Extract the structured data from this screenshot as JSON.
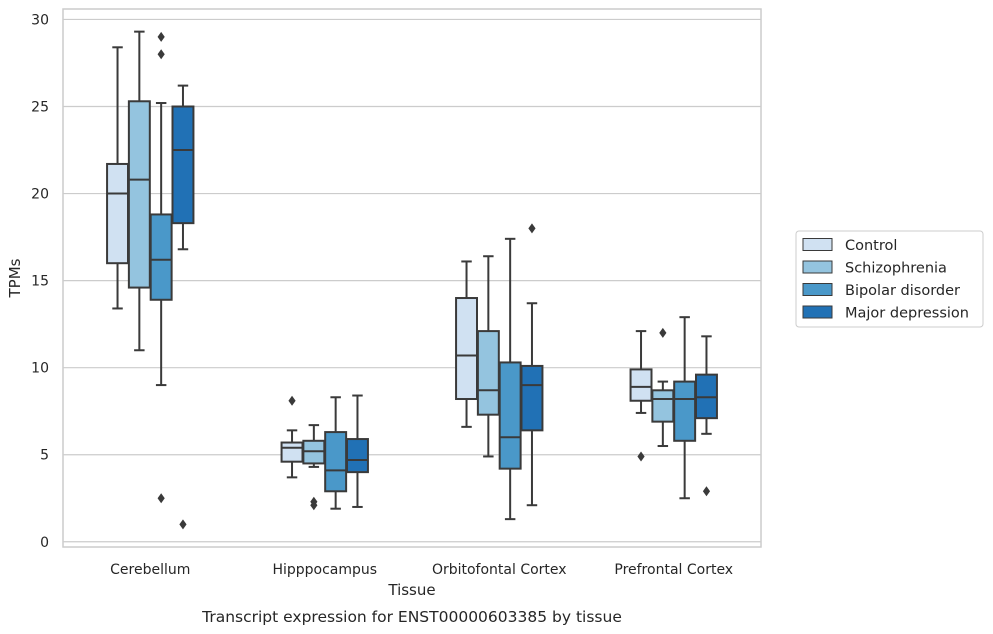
{
  "chart_data": {
    "type": "box",
    "caption": "Transcript expression for ENST00000603385 by tissue",
    "xlabel": "Tissue",
    "ylabel": "TPMs",
    "ylim": [
      -0.3,
      30.6
    ],
    "yticks": [
      0,
      5,
      10,
      15,
      20,
      25,
      30
    ],
    "grid": true,
    "legend_position": "right",
    "categories": [
      "Cerebellum",
      "Hipppocampus",
      "Orbitofontal Cortex",
      "Prefrontal Cortex"
    ],
    "series": [
      {
        "name": "Control",
        "color": "#d0e1f2",
        "boxes": [
          {
            "whislo": 13.4,
            "q1": 16.0,
            "med": 20.0,
            "q3": 21.7,
            "whishi": 28.4,
            "fliers": []
          },
          {
            "whislo": 3.7,
            "q1": 4.6,
            "med": 5.4,
            "q3": 5.7,
            "whishi": 6.4,
            "fliers": [
              8.1
            ]
          },
          {
            "whislo": 6.6,
            "q1": 8.2,
            "med": 10.7,
            "q3": 14.0,
            "whishi": 16.1,
            "fliers": []
          },
          {
            "whislo": 7.4,
            "q1": 8.1,
            "med": 8.9,
            "q3": 9.9,
            "whishi": 12.1,
            "fliers": [
              4.9
            ]
          }
        ]
      },
      {
        "name": "Schizophrenia",
        "color": "#94c4df",
        "boxes": [
          {
            "whislo": 11.0,
            "q1": 14.6,
            "med": 20.8,
            "q3": 25.3,
            "whishi": 29.3,
            "fliers": []
          },
          {
            "whislo": 4.3,
            "q1": 4.5,
            "med": 5.2,
            "q3": 5.8,
            "whishi": 6.7,
            "fliers": [
              2.1,
              2.3
            ]
          },
          {
            "whislo": 4.9,
            "q1": 7.3,
            "med": 8.7,
            "q3": 12.1,
            "whishi": 16.4,
            "fliers": []
          },
          {
            "whislo": 5.5,
            "q1": 6.9,
            "med": 8.2,
            "q3": 8.7,
            "whishi": 9.2,
            "fliers": [
              12.0
            ]
          }
        ]
      },
      {
        "name": "Bipolar disorder",
        "color": "#4a98c9",
        "boxes": [
          {
            "whislo": 9.0,
            "q1": 13.9,
            "med": 16.2,
            "q3": 18.8,
            "whishi": 25.2,
            "fliers": [
              28.0,
              29.0,
              2.5
            ]
          },
          {
            "whislo": 1.9,
            "q1": 2.9,
            "med": 4.1,
            "q3": 6.3,
            "whishi": 8.3,
            "fliers": []
          },
          {
            "whislo": 1.3,
            "q1": 4.2,
            "med": 6.0,
            "q3": 10.3,
            "whishi": 17.4,
            "fliers": []
          },
          {
            "whislo": 2.5,
            "q1": 5.8,
            "med": 8.2,
            "q3": 9.2,
            "whishi": 12.9,
            "fliers": []
          }
        ]
      },
      {
        "name": "Major depression",
        "color": "#2171b5",
        "boxes": [
          {
            "whislo": 16.8,
            "q1": 18.3,
            "med": 22.5,
            "q3": 25.0,
            "whishi": 26.2,
            "fliers": [
              1.0
            ]
          },
          {
            "whislo": 2.0,
            "q1": 4.0,
            "med": 4.7,
            "q3": 5.9,
            "whishi": 8.4,
            "fliers": []
          },
          {
            "whislo": 2.1,
            "q1": 6.4,
            "med": 9.0,
            "q3": 10.1,
            "whishi": 13.7,
            "fliers": [
              18.0
            ]
          },
          {
            "whislo": 6.2,
            "q1": 7.1,
            "med": 8.3,
            "q3": 9.6,
            "whishi": 11.8,
            "fliers": [
              2.9
            ]
          }
        ]
      }
    ]
  }
}
